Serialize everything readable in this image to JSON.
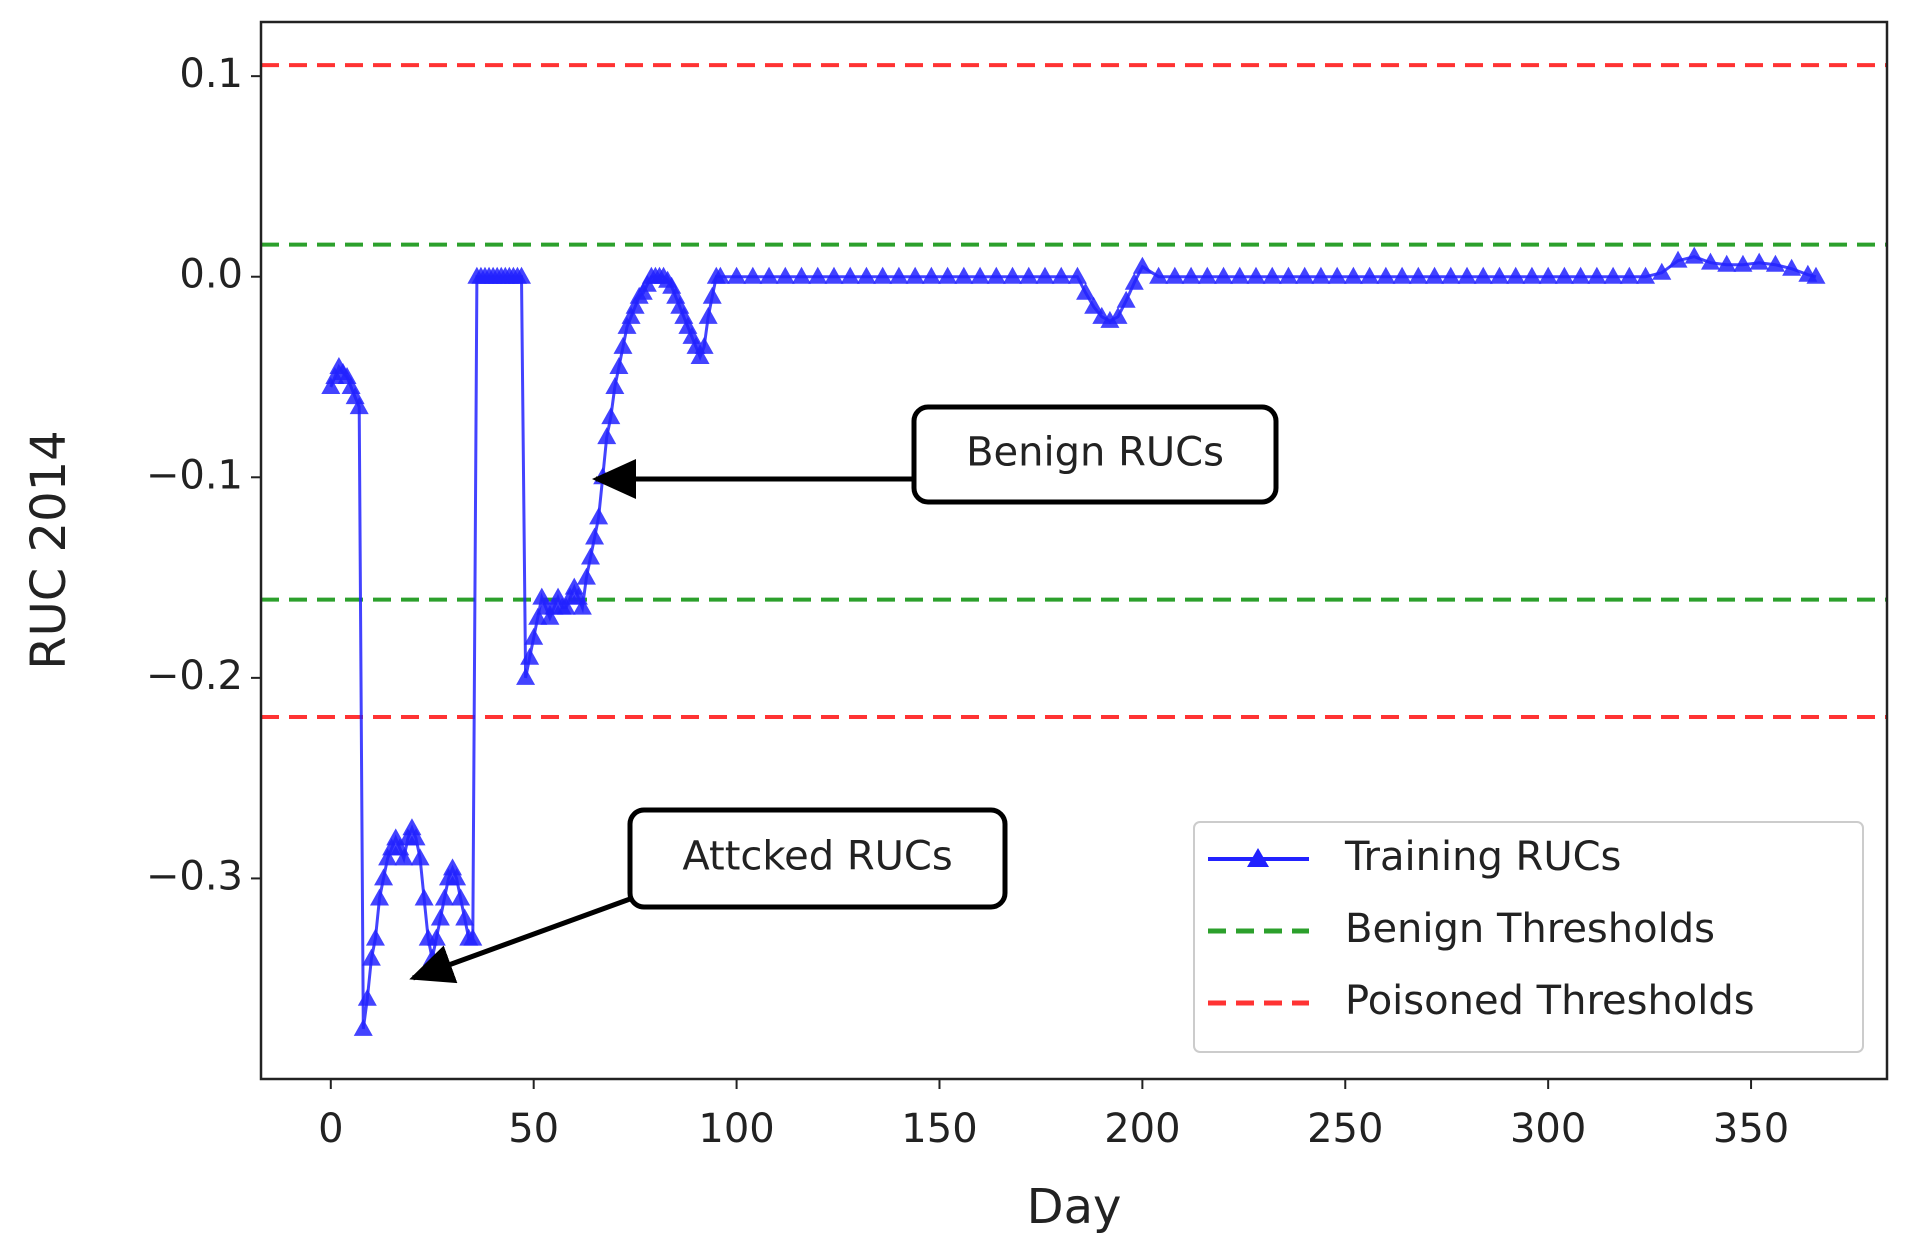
{
  "chart_data": {
    "type": "line",
    "xlabel": "Day",
    "ylabel": "RUC 2014",
    "xlim": [
      -17.2,
      383.5
    ],
    "ylim": [
      -0.4,
      0.127
    ],
    "xticks": [
      0,
      50,
      100,
      150,
      200,
      250,
      300,
      350
    ],
    "yticks": [
      {
        "value": -0.3,
        "label": "−0.3"
      },
      {
        "value": -0.2,
        "label": "−0.2"
      },
      {
        "value": -0.1,
        "label": "−0.1"
      },
      {
        "value": 0,
        "label": "0.0"
      },
      0.1
    ],
    "x": [
      0,
      1,
      2,
      3,
      4,
      5,
      6,
      7,
      8,
      9,
      10,
      11,
      12,
      13,
      14,
      15,
      16,
      17,
      18,
      19,
      20,
      21,
      22,
      23,
      24,
      25,
      26,
      27,
      28,
      29,
      30,
      31,
      32,
      33,
      34,
      35,
      36,
      37,
      38,
      39,
      40,
      41,
      42,
      43,
      44,
      45,
      46,
      47,
      48,
      49,
      50,
      51,
      52,
      53,
      54,
      55,
      56,
      57,
      58,
      59,
      60,
      61,
      62,
      63,
      64,
      65,
      66,
      67,
      68,
      69,
      70,
      71,
      72,
      73,
      74,
      75,
      76,
      77,
      78,
      79,
      80,
      81,
      82,
      83,
      84,
      85,
      86,
      87,
      88,
      89,
      90,
      91,
      92,
      93,
      94,
      95,
      96,
      100,
      104,
      108,
      112,
      116,
      120,
      124,
      128,
      132,
      136,
      140,
      144,
      148,
      152,
      156,
      160,
      164,
      168,
      172,
      176,
      180,
      184,
      186,
      188,
      190,
      192,
      194,
      196,
      198,
      200,
      204,
      208,
      212,
      216,
      220,
      224,
      228,
      232,
      236,
      240,
      244,
      248,
      252,
      256,
      260,
      264,
      268,
      272,
      276,
      280,
      284,
      288,
      292,
      296,
      300,
      304,
      308,
      312,
      316,
      320,
      324,
      328,
      332,
      336,
      340,
      344,
      348,
      352,
      356,
      360,
      364,
      366
    ],
    "series": [
      {
        "name": "Training RUCs",
        "color": "#2222ff",
        "values": [
          -0.055,
          -0.05,
          -0.045,
          -0.048,
          -0.05,
          -0.055,
          -0.06,
          -0.065,
          -0.375,
          -0.36,
          -0.34,
          -0.33,
          -0.31,
          -0.3,
          -0.29,
          -0.285,
          -0.28,
          -0.285,
          -0.29,
          -0.28,
          -0.275,
          -0.28,
          -0.29,
          -0.31,
          -0.33,
          -0.34,
          -0.33,
          -0.32,
          -0.31,
          -0.3,
          -0.295,
          -0.3,
          -0.31,
          -0.32,
          -0.33,
          -0.33,
          0,
          0,
          0,
          0,
          0,
          0,
          0,
          0,
          0,
          0,
          0,
          0,
          -0.2,
          -0.19,
          -0.18,
          -0.17,
          -0.16,
          -0.165,
          -0.17,
          -0.165,
          -0.16,
          -0.165,
          -0.165,
          -0.16,
          -0.155,
          -0.16,
          -0.165,
          -0.15,
          -0.14,
          -0.13,
          -0.12,
          -0.1,
          -0.08,
          -0.07,
          -0.055,
          -0.045,
          -0.035,
          -0.025,
          -0.02,
          -0.015,
          -0.01,
          -0.008,
          -0.004,
          0,
          0,
          0,
          0,
          -0.002,
          -0.005,
          -0.01,
          -0.015,
          -0.02,
          -0.025,
          -0.03,
          -0.035,
          -0.04,
          -0.035,
          -0.02,
          -0.01,
          0,
          0,
          0,
          0,
          0,
          0,
          0,
          0,
          0,
          0,
          0,
          0,
          0,
          0,
          0,
          0,
          0,
          0,
          0,
          0,
          0,
          0,
          0,
          0,
          -0.008,
          -0.015,
          -0.02,
          -0.022,
          -0.02,
          -0.012,
          -0.003,
          0.005,
          0,
          0,
          0,
          0,
          0,
          0,
          0,
          0,
          0,
          0,
          0,
          0,
          0,
          0,
          0,
          0,
          0,
          0,
          0,
          0,
          0,
          0,
          0,
          0,
          0,
          0,
          0,
          0,
          0,
          0,
          0,
          0.002,
          0.008,
          0.01,
          0.007,
          0.006,
          0.006,
          0.007,
          0.006,
          0.004,
          0.001,
          0
        ]
      }
    ],
    "thresholds": [
      {
        "name": "Benign Thresholds",
        "color": "#2ca02c",
        "values": [
          0.016,
          -0.161
        ]
      },
      {
        "name": "Poisoned Thresholds",
        "color": "#ff3333",
        "values": [
          0.1055,
          -0.2195
        ]
      }
    ],
    "annotations": [
      "Benign RUCs",
      "Attcked RUCs"
    ],
    "legend": "lower right"
  }
}
